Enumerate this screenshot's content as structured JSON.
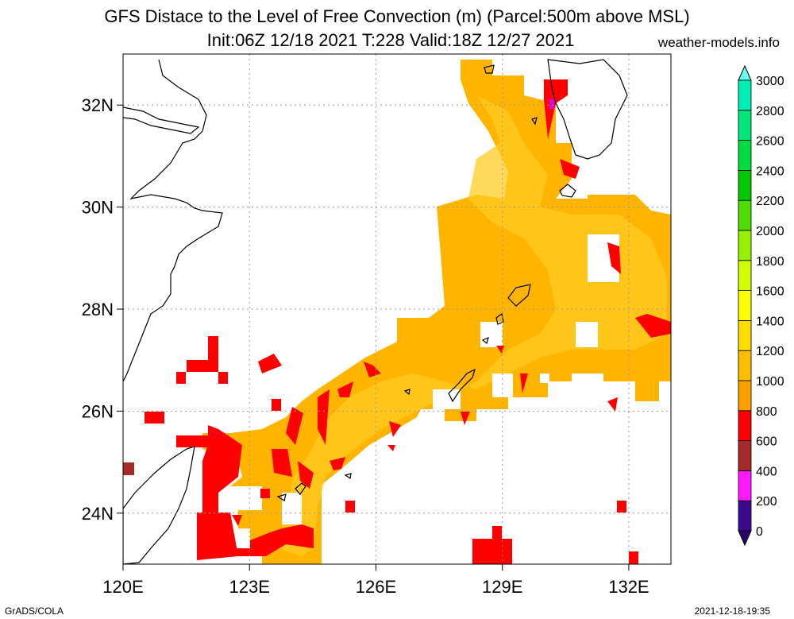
{
  "header": {
    "title_line1": "GFS Distace to the Level of Free Convection (m) (Parcel:500m above MSL)",
    "title_line2": "Init:06Z 12/18 2021 T:228 Valid:18Z 12/27 2021",
    "credit": "weather-models.info"
  },
  "footer": {
    "left": "GrADS/COLA",
    "right": "2021-12-18-19:35"
  },
  "map": {
    "lon_range": [
      120,
      133
    ],
    "lat_range": [
      23,
      33
    ],
    "lat_ticks": [
      {
        "value": 24,
        "label": "24N"
      },
      {
        "value": 26,
        "label": "26N"
      },
      {
        "value": 28,
        "label": "28N"
      },
      {
        "value": 30,
        "label": "30N"
      },
      {
        "value": 32,
        "label": "32N"
      }
    ],
    "lon_ticks": [
      {
        "value": 120,
        "label": "120E"
      },
      {
        "value": 123,
        "label": "123E"
      },
      {
        "value": 126,
        "label": "126E"
      },
      {
        "value": 129,
        "label": "129E"
      },
      {
        "value": 132,
        "label": "132E"
      }
    ],
    "gridlines": true
  },
  "colorbar": {
    "levels": [
      {
        "value": "0",
        "color": "#3b0a8c"
      },
      {
        "value": "200",
        "color": "#ff1aff"
      },
      {
        "value": "400",
        "color": "#a52a2a"
      },
      {
        "value": "600",
        "color": "#ff0000"
      },
      {
        "value": "800",
        "color": "#ffa000"
      },
      {
        "value": "1000",
        "color": "#ffbe00"
      },
      {
        "value": "1200",
        "color": "#ffdc00"
      },
      {
        "value": "1400",
        "color": "#ffff00"
      },
      {
        "value": "1600",
        "color": "#d2ff00"
      },
      {
        "value": "1800",
        "color": "#96f000"
      },
      {
        "value": "2000",
        "color": "#50dc00"
      },
      {
        "value": "2200",
        "color": "#00c800"
      },
      {
        "value": "2400",
        "color": "#00dc3c"
      },
      {
        "value": "2600",
        "color": "#00e678"
      },
      {
        "value": "2800",
        "color": "#00f0b4"
      },
      {
        "value": "3000",
        "color": "#00fae6"
      }
    ],
    "low_color": "#2a0068",
    "high_color": "#66ffee"
  },
  "colors": {
    "red": "#ff0000",
    "orange": "#ffa000",
    "gold": "#ffbe00",
    "yellow": "#ffd21e",
    "brown": "#a52a2a"
  }
}
